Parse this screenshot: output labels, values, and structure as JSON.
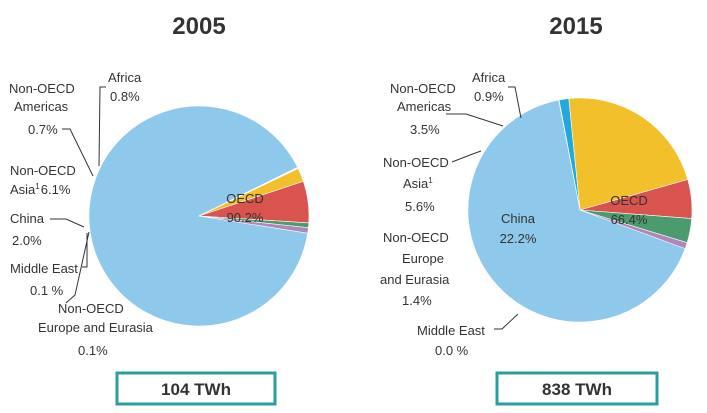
{
  "chart_data": [
    {
      "type": "pie",
      "title": "2005",
      "total": "104 TWh",
      "slices": [
        {
          "label": "OECD",
          "value": 90.2,
          "display": "90.2%",
          "color": "#8ec8ea"
        },
        {
          "label": "Non-OECD Europe and Eurasia",
          "value": 0.1,
          "display": "0.1%",
          "color": "#22a8dd"
        },
        {
          "label": "Middle East",
          "value": 0.1,
          "display": "0.1 %",
          "color": "#8e6f9c"
        },
        {
          "label": "China",
          "value": 2.0,
          "display": "2.0%",
          "color": "#f2c02a"
        },
        {
          "label": "Non-OECD Asia",
          "value": 6.1,
          "display": "6.1%",
          "color": "#d9534f"
        },
        {
          "label": "Non-OECD Americas",
          "value": 0.7,
          "display": "0.7%",
          "color": "#4a9b6e"
        },
        {
          "label": "Africa",
          "value": 0.8,
          "display": "0.8%",
          "color": "#b186b8"
        }
      ]
    },
    {
      "type": "pie",
      "title": "2015",
      "total": "838 TWh",
      "slices": [
        {
          "label": "OECD",
          "value": 66.4,
          "display": "66.4%",
          "color": "#8ec8ea"
        },
        {
          "label": "Middle East",
          "value": 0.0,
          "display": "0.0 %",
          "color": "#8e6f9c"
        },
        {
          "label": "Non-OECD Europe and Eurasia",
          "value": 1.4,
          "display": "1.4%",
          "color": "#22a8dd"
        },
        {
          "label": "China",
          "value": 22.2,
          "display": "22.2%",
          "color": "#f2c02a"
        },
        {
          "label": "Non-OECD Asia",
          "value": 5.6,
          "display": "5.6%",
          "color": "#d9534f"
        },
        {
          "label": "Non-OECD Americas",
          "value": 3.5,
          "display": "3.5%",
          "color": "#4a9b6e"
        },
        {
          "label": "Africa",
          "value": 0.9,
          "display": "0.9%",
          "color": "#b186b8"
        }
      ]
    }
  ],
  "labels": {
    "p2005": {
      "oecd": "OECD",
      "europe_line1": "Non-OECD",
      "europe_line2": "Europe and Eurasia",
      "middle_east": "Middle East",
      "china": "China",
      "asia_line1": "Non-OECD",
      "asia_line2": "Asia",
      "asia_sup": "1",
      "americas_line1": "Non-OECD",
      "americas_line2": "Americas",
      "africa": "Africa"
    },
    "p2015": {
      "oecd": "OECD",
      "middle_east": "Middle East",
      "europe_line1": "Non-OECD",
      "europe_line2": "Europe",
      "europe_line3": "and Eurasia",
      "china": "China",
      "asia_line1": "Non-OECD",
      "asia_line2": "Asia",
      "asia_sup": "1",
      "americas_line1": "Non-OECD",
      "americas_line2": "Americas",
      "africa": "Africa"
    }
  }
}
